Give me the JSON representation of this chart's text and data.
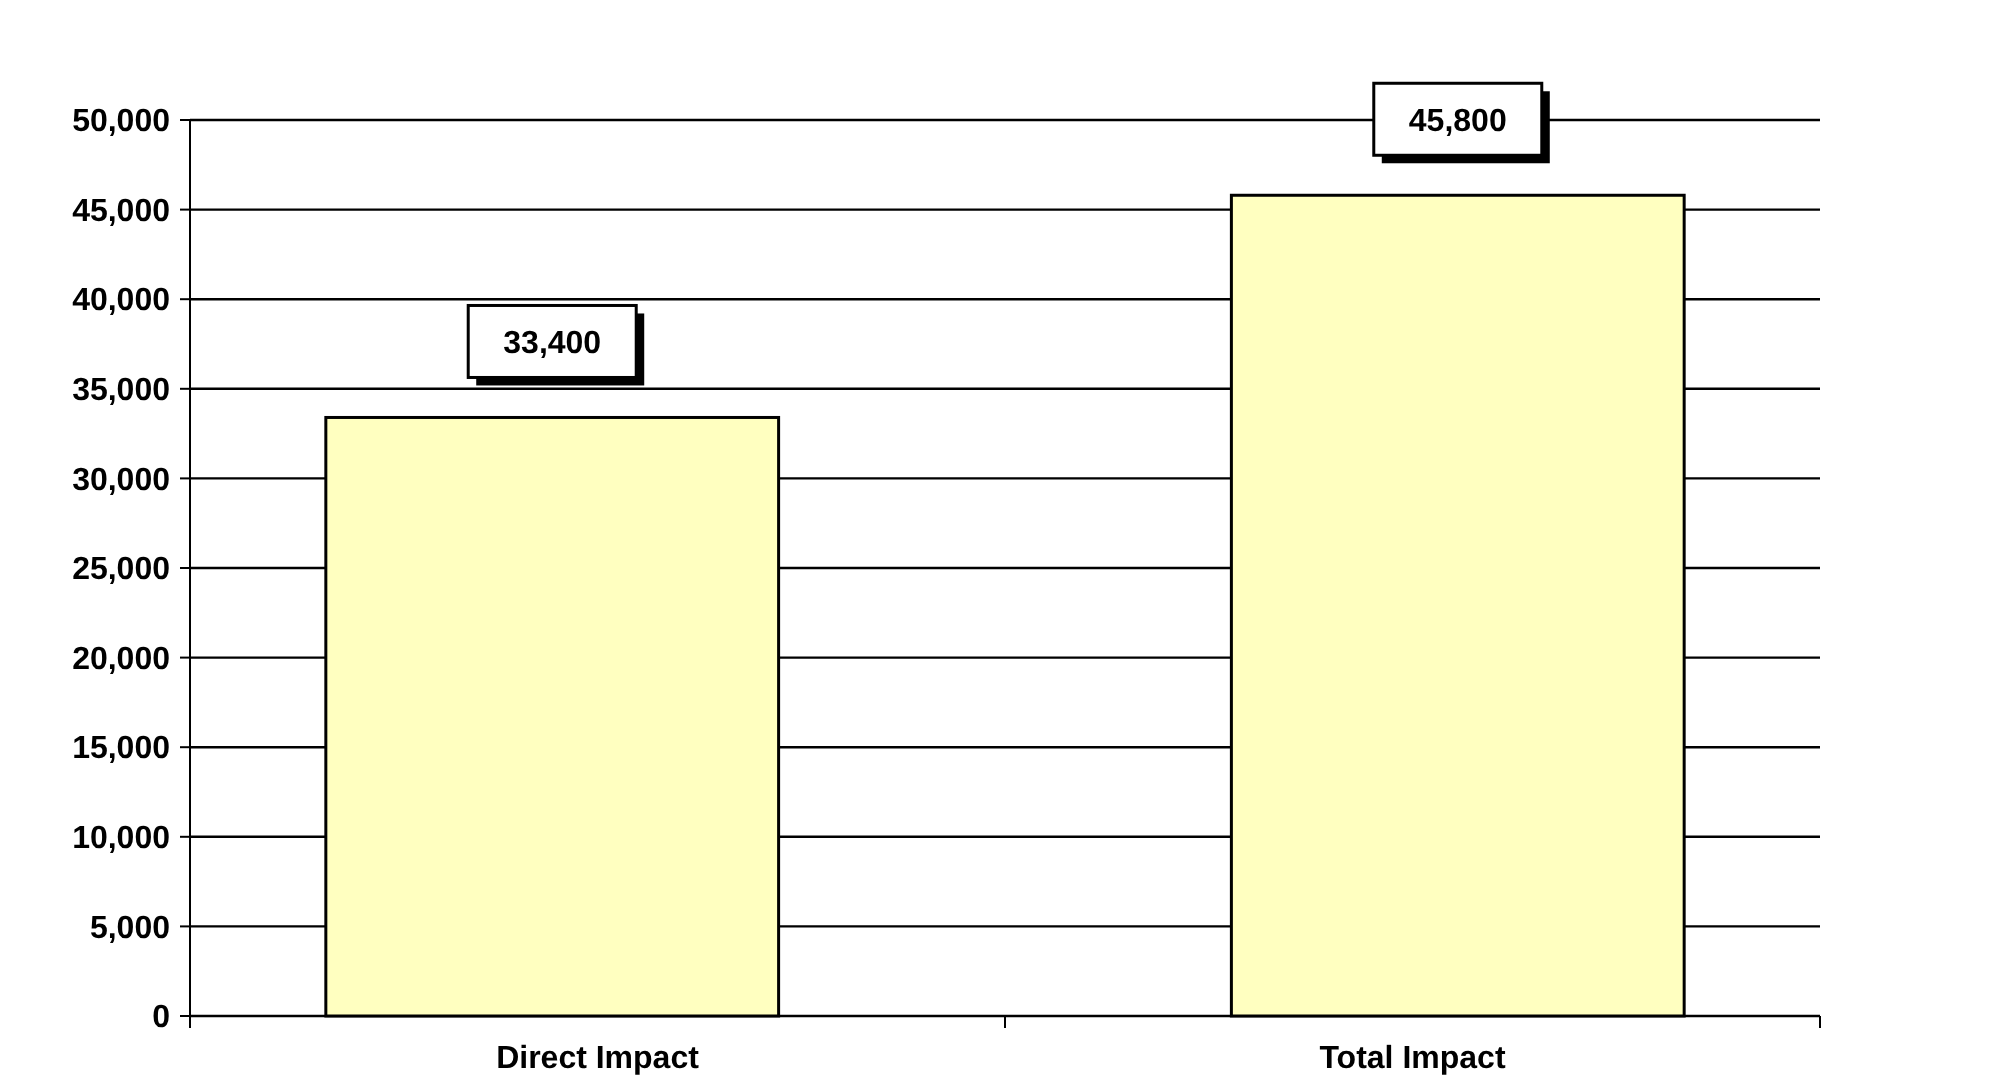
{
  "chart_data": {
    "type": "bar",
    "categories": [
      "Direct Impact",
      "Total Impact"
    ],
    "values": [
      33400,
      45800
    ],
    "value_labels": [
      "33,400",
      "45,800"
    ],
    "color": "#ffffc0",
    "ylim": [
      0,
      50000
    ],
    "yticks": [
      0,
      {
        "value": 5000,
        "label": "5,000"
      },
      {
        "value": 10000,
        "label": "10,000"
      },
      {
        "value": 15000,
        "label": "15,000"
      },
      {
        "value": 20000,
        "label": "20,000"
      },
      {
        "value": 25000,
        "label": "25,000"
      },
      {
        "value": 30000,
        "label": "30,000"
      },
      {
        "value": 35000,
        "label": "35,000"
      },
      {
        "value": 40000,
        "label": "40,000"
      },
      {
        "value": 45000,
        "label": "45,000"
      },
      {
        "value": 50000,
        "label": "50,000"
      }
    ],
    "grid": "y"
  }
}
